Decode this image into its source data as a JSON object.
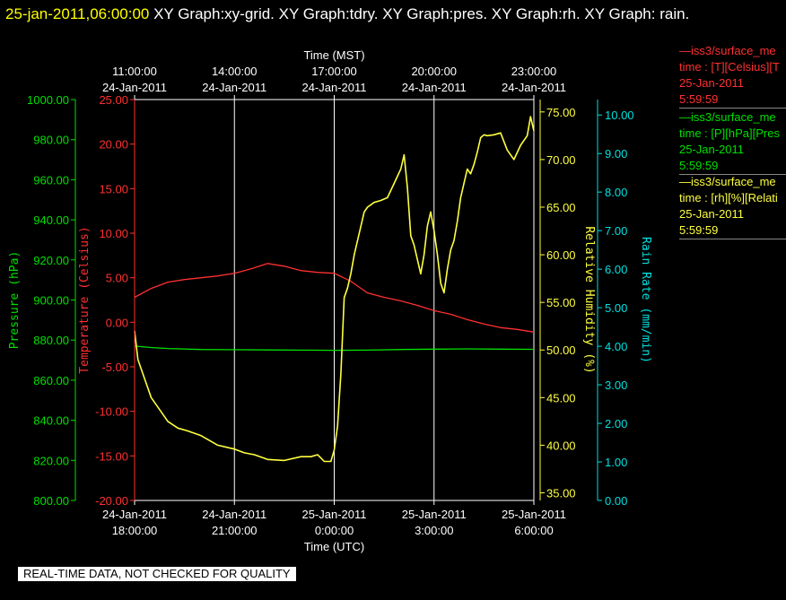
{
  "header": {
    "timestamp": "25-jan-2011,06:00:00",
    "title_rest": "  XY Graph:xy-grid.  XY Graph:tdry.  XY Graph:pres.  XY Graph:rh.  XY Graph: rain."
  },
  "footer": {
    "notice": "REAL-TIME DATA, NOT CHECKED FOR QUALITY"
  },
  "legend": [
    {
      "line1": "—iss3/surface_me",
      "line2": "time : [T][Celsius][T",
      "line3": "25-Jan-2011",
      "line4": "5:59:59",
      "color": "#ff3030"
    },
    {
      "line1": "—iss3/surface_me",
      "line2": "time : [P][hPa][Pres",
      "line3": "25-Jan-2011",
      "line4": "5:59:59",
      "color": "#00e000"
    },
    {
      "line1": "—iss3/surface_me",
      "line2": "time : [rh][%][Relati",
      "line3": "25-Jan-2011",
      "line4": "5:59:59",
      "color": "#ffff40"
    }
  ],
  "chart_data": {
    "type": "line",
    "top_axis": {
      "label": "Time (MST)",
      "ticks": [
        {
          "x_hours": 0,
          "time": "11:00:00",
          "date": "24-Jan-2011"
        },
        {
          "x_hours": 3,
          "time": "14:00:00",
          "date": "24-Jan-2011"
        },
        {
          "x_hours": 6,
          "time": "17:00:00",
          "date": "24-Jan-2011"
        },
        {
          "x_hours": 9,
          "time": "20:00:00",
          "date": "24-Jan-2011"
        },
        {
          "x_hours": 12,
          "time": "23:00:00",
          "date": "24-Jan-2011"
        }
      ]
    },
    "bottom_axis": {
      "label": "Time (UTC)",
      "ticks": [
        {
          "x_hours": 0,
          "date": "24-Jan-2011",
          "time": "18:00:00"
        },
        {
          "x_hours": 3,
          "date": "24-Jan-2011",
          "time": "21:00:00"
        },
        {
          "x_hours": 6,
          "date": "25-Jan-2011",
          "time": "0:00:00"
        },
        {
          "x_hours": 9,
          "date": "25-Jan-2011",
          "time": "3:00:00"
        },
        {
          "x_hours": 12,
          "date": "25-Jan-2011",
          "time": "6:00:00"
        }
      ]
    },
    "x_range_hours": [
      0,
      12
    ],
    "pressure_axis": {
      "label": "Pressure (hPa)",
      "color": "#00e000",
      "range": [
        800,
        1000
      ],
      "ticks": [
        "1000.00",
        "980.00",
        "960.00",
        "940.00",
        "920.00",
        "900.00",
        "880.00",
        "860.00",
        "840.00",
        "820.00",
        "800.00"
      ]
    },
    "temperature_axis": {
      "label": "Temperature (Celsius)",
      "color": "#ff3030",
      "range": [
        -20,
        25
      ],
      "ticks": [
        "25.00",
        "20.00",
        "15.00",
        "10.00",
        "5.00",
        "0.00",
        "-5.00",
        "-10.00",
        "-15.00",
        "-20.00"
      ]
    },
    "humidity_axis": {
      "label": "Relative Humidity (%)",
      "color": "#ffff40",
      "range": [
        34.2,
        76.3
      ],
      "ticks": [
        "75.00",
        "70.00",
        "65.00",
        "60.00",
        "55.00",
        "50.00",
        "45.00",
        "40.00",
        "35.00"
      ]
    },
    "rain_axis": {
      "label": "Rain Rate (mm/min)",
      "color": "#00e0e0",
      "range": [
        0,
        10.4
      ],
      "ticks": [
        "10.00",
        "9.00",
        "8.00",
        "7.00",
        "6.00",
        "5.00",
        "4.00",
        "3.00",
        "2.00",
        "1.00",
        "0.00"
      ]
    },
    "series": [
      {
        "name": "iss3/surface_me T",
        "axis": "temperature",
        "color": "#ff3030",
        "x": [
          0,
          0.5,
          1,
          1.5,
          2,
          2.5,
          3,
          3.5,
          4,
          4.5,
          5,
          5.5,
          6,
          6.5,
          7,
          7.5,
          8,
          8.5,
          9,
          9.5,
          10,
          10.5,
          11,
          11.5,
          12
        ],
        "y": [
          2.8,
          3.8,
          4.5,
          4.8,
          5.0,
          5.2,
          5.5,
          6.0,
          6.6,
          6.3,
          5.8,
          5.6,
          5.5,
          4.6,
          3.3,
          2.8,
          2.4,
          1.9,
          1.3,
          0.9,
          0.3,
          -0.2,
          -0.6,
          -0.8,
          -1.1
        ]
      },
      {
        "name": "iss3/surface_me P",
        "axis": "pressure",
        "color": "#00e000",
        "x": [
          0,
          0.5,
          1,
          2,
          3,
          4,
          5,
          6,
          7,
          8,
          9,
          10,
          11,
          12
        ],
        "y": [
          877.0,
          876.3,
          875.8,
          875.3,
          875.2,
          875.1,
          875.0,
          874.9,
          875.0,
          875.3,
          875.5,
          875.6,
          875.5,
          875.4
        ]
      },
      {
        "name": "iss3/surface_me rh",
        "axis": "humidity",
        "color": "#ffff40",
        "x": [
          0,
          0.1,
          0.3,
          0.5,
          0.8,
          1,
          1.3,
          1.6,
          2,
          2.5,
          3,
          3.3,
          3.6,
          4,
          4.5,
          5,
          5.3,
          5.5,
          5.7,
          5.9,
          6,
          6.1,
          6.2,
          6.3,
          6.4,
          6.5,
          6.6,
          6.7,
          6.8,
          6.9,
          7,
          7.2,
          7.4,
          7.6,
          7.8,
          8,
          8.1,
          8.2,
          8.3,
          8.4,
          8.5,
          8.6,
          8.7,
          8.8,
          8.9,
          9,
          9.1,
          9.2,
          9.3,
          9.4,
          9.5,
          9.6,
          9.7,
          9.8,
          9.9,
          10,
          10.1,
          10.2,
          10.3,
          10.4,
          10.5,
          10.6,
          10.8,
          11,
          11.2,
          11.4,
          11.6,
          11.8,
          11.9,
          12
        ],
        "y": [
          52.0,
          49.0,
          47.0,
          45.0,
          43.5,
          42.5,
          41.8,
          41.5,
          41.0,
          40.0,
          39.6,
          39.2,
          39.0,
          38.5,
          38.4,
          38.8,
          38.8,
          39.0,
          38.3,
          38.3,
          39.5,
          42.0,
          47.5,
          55.5,
          56.5,
          58.0,
          60.0,
          61.5,
          63.0,
          64.5,
          65.0,
          65.5,
          65.7,
          66.0,
          67.5,
          69.0,
          70.5,
          67.0,
          62.0,
          61.0,
          59.5,
          58.0,
          60.0,
          63.0,
          64.5,
          62.5,
          60.0,
          57.0,
          56.0,
          58.5,
          60.5,
          61.5,
          63.5,
          66.0,
          67.5,
          69.0,
          68.5,
          69.5,
          70.8,
          72.3,
          72.6,
          72.5,
          72.6,
          72.8,
          71.0,
          70.0,
          71.5,
          72.5,
          74.5,
          73.0
        ]
      }
    ]
  }
}
